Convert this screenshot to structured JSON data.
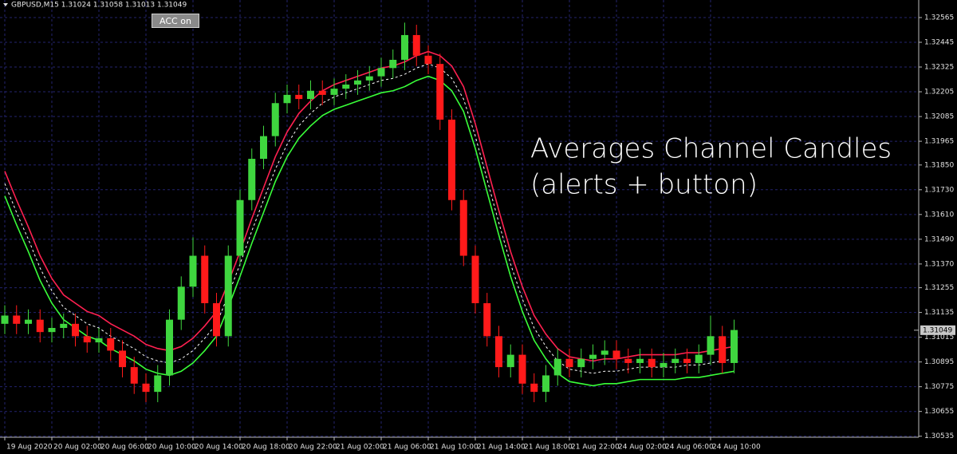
{
  "chart_data": {
    "type": "candlestick",
    "symbol_info": "GBPUSD,M15  1.31024 1.31058 1.31013 1.31049",
    "title": "Averages Channel Candles",
    "subtitle": "(alerts + button)",
    "categories": [
      "19 Aug 2020",
      null,
      null,
      null,
      "20 Aug 02:00",
      null,
      null,
      null,
      "20 Aug 06:00",
      null,
      null,
      null,
      "20 Aug 10:00",
      null,
      null,
      null,
      "20 Aug 14:00",
      null,
      null,
      null,
      "20 Aug 18:00",
      null,
      null,
      null,
      "20 Aug 22:00",
      null,
      null,
      null,
      "21 Aug 02:00",
      null,
      null,
      null,
      "21 Aug 06:00",
      null,
      null,
      null,
      "21 Aug 10:00",
      null,
      null,
      null,
      "21 Aug 14:00",
      null,
      null,
      null,
      "21 Aug 18:00",
      null,
      null,
      null,
      "21 Aug 22:00",
      null,
      null,
      null,
      "24 Aug 02:00",
      null,
      null,
      null,
      "24 Aug 06:00",
      null,
      null,
      null,
      "24 Aug 10:00",
      null,
      null
    ],
    "open": [
      1.3108,
      1.3112,
      1.3108,
      1.311,
      1.3104,
      1.3106,
      1.3108,
      1.3102,
      1.3099,
      1.3101,
      1.3095,
      1.3087,
      1.3079,
      1.3075,
      1.3083,
      1.311,
      1.3126,
      1.3141,
      1.3118,
      1.3102,
      1.3141,
      1.3168,
      1.3188,
      1.3199,
      1.3215,
      1.3219,
      1.3217,
      1.3221,
      1.3219,
      1.3222,
      1.3224,
      1.3226,
      1.3228,
      1.3232,
      1.3236,
      1.3248,
      1.3238,
      1.3234,
      1.3207,
      1.3168,
      1.3141,
      1.3118,
      1.3102,
      1.3087,
      1.3093,
      1.3079,
      1.3075,
      1.3083,
      1.3091,
      1.3087,
      1.3091,
      1.3093,
      1.3095,
      1.3091,
      1.3089,
      1.3091,
      1.3087,
      1.3089,
      1.3091,
      1.3089,
      1.3093,
      1.3102,
      1.3089
    ],
    "high": [
      1.3117,
      1.3117,
      1.3115,
      1.3115,
      1.3111,
      1.3113,
      1.3113,
      1.3107,
      1.3106,
      1.3106,
      1.31,
      1.3092,
      1.3084,
      1.3088,
      1.3115,
      1.3131,
      1.315,
      1.3146,
      1.3123,
      1.3146,
      1.3173,
      1.3193,
      1.3204,
      1.322,
      1.3224,
      1.3224,
      1.3226,
      1.3226,
      1.3227,
      1.3229,
      1.3231,
      1.3233,
      1.3237,
      1.3241,
      1.3254,
      1.3253,
      1.3243,
      1.3239,
      1.3212,
      1.3173,
      1.3146,
      1.3123,
      1.3107,
      1.3098,
      1.3098,
      1.3084,
      1.3088,
      1.3096,
      1.3096,
      1.3096,
      1.3098,
      1.31,
      1.31,
      1.3096,
      1.3096,
      1.3096,
      1.3094,
      1.3096,
      1.3096,
      1.3098,
      1.3112,
      1.3107,
      1.311
    ],
    "low": [
      1.3103,
      1.3103,
      1.3103,
      1.3099,
      1.3099,
      1.3101,
      1.3097,
      1.3094,
      1.3094,
      1.309,
      1.3082,
      1.3074,
      1.307,
      1.307,
      1.3078,
      1.3105,
      1.3121,
      1.3113,
      1.3097,
      1.3097,
      1.3136,
      1.3163,
      1.3183,
      1.3194,
      1.321,
      1.3212,
      1.3212,
      1.3214,
      1.3214,
      1.3217,
      1.3219,
      1.3221,
      1.3223,
      1.3227,
      1.3231,
      1.3233,
      1.3229,
      1.3202,
      1.3163,
      1.3136,
      1.3113,
      1.3097,
      1.3082,
      1.3082,
      1.3074,
      1.307,
      1.307,
      1.3078,
      1.3082,
      1.3082,
      1.3086,
      1.3088,
      1.3086,
      1.3084,
      1.3084,
      1.3082,
      1.3082,
      1.3084,
      1.3084,
      1.3084,
      1.3088,
      1.3084,
      1.3084
    ],
    "close": [
      1.3112,
      1.3108,
      1.311,
      1.3104,
      1.3106,
      1.3108,
      1.3102,
      1.3099,
      1.3101,
      1.3095,
      1.3087,
      1.3079,
      1.3075,
      1.3083,
      1.311,
      1.3126,
      1.3141,
      1.3118,
      1.3102,
      1.3141,
      1.3168,
      1.3188,
      1.3199,
      1.3215,
      1.3219,
      1.3217,
      1.3221,
      1.3219,
      1.3222,
      1.3224,
      1.3226,
      1.3228,
      1.3232,
      1.3236,
      1.3248,
      1.3238,
      1.3234,
      1.3207,
      1.3168,
      1.3141,
      1.3118,
      1.3102,
      1.3087,
      1.3093,
      1.3079,
      1.3075,
      1.3083,
      1.3091,
      1.3087,
      1.3091,
      1.3093,
      1.3095,
      1.3091,
      1.3089,
      1.3091,
      1.3087,
      1.3089,
      1.3091,
      1.3089,
      1.3093,
      1.3102,
      1.3089,
      1.3105
    ],
    "up_color": "#3fd63f",
    "down_color": "#ff1a1a",
    "series": [
      {
        "color": "#ff2050",
        "style": "solid",
        "values": [
          1.3182,
          1.3168,
          1.3155,
          1.3141,
          1.313,
          1.3122,
          1.3118,
          1.3114,
          1.3112,
          1.3108,
          1.3105,
          1.3102,
          1.3098,
          1.3096,
          1.3095,
          1.3097,
          1.3101,
          1.3107,
          1.3114,
          1.3128,
          1.3143,
          1.3159,
          1.3174,
          1.3189,
          1.3201,
          1.321,
          1.3216,
          1.3221,
          1.3224,
          1.3226,
          1.3228,
          1.323,
          1.3232,
          1.3233,
          1.3235,
          1.3238,
          1.324,
          1.3238,
          1.3233,
          1.3223,
          1.3205,
          1.3184,
          1.3163,
          1.3143,
          1.3126,
          1.3112,
          1.3103,
          1.3096,
          1.3092,
          1.3091,
          1.309,
          1.3091,
          1.3091,
          1.3092,
          1.3093,
          1.3093,
          1.3093,
          1.3093,
          1.3094,
          1.3094,
          1.3095,
          1.3096,
          1.3097
        ]
      },
      {
        "color": "#ffffff",
        "style": "dashed",
        "values": [
          1.3176,
          1.3162,
          1.3149,
          1.3135,
          1.3124,
          1.3116,
          1.3112,
          1.3108,
          1.3106,
          1.3102,
          1.3099,
          1.3096,
          1.3092,
          1.309,
          1.3089,
          1.3091,
          1.3095,
          1.3101,
          1.3108,
          1.3122,
          1.3137,
          1.3153,
          1.3168,
          1.3183,
          1.3195,
          1.3204,
          1.321,
          1.3215,
          1.3218,
          1.322,
          1.3222,
          1.3224,
          1.3226,
          1.3227,
          1.3229,
          1.3232,
          1.3234,
          1.3232,
          1.3227,
          1.3217,
          1.3199,
          1.3178,
          1.3157,
          1.3137,
          1.312,
          1.3106,
          1.3097,
          1.309,
          1.3086,
          1.3085,
          1.3084,
          1.3085,
          1.3085,
          1.3086,
          1.3087,
          1.3087,
          1.3087,
          1.3087,
          1.3088,
          1.3088,
          1.3089,
          1.309,
          1.3091
        ]
      },
      {
        "color": "#39ff39",
        "style": "solid",
        "values": [
          1.317,
          1.3156,
          1.3143,
          1.3129,
          1.3118,
          1.311,
          1.3106,
          1.3102,
          1.31,
          1.3096,
          1.3093,
          1.309,
          1.3086,
          1.3084,
          1.3083,
          1.3085,
          1.3089,
          1.3095,
          1.3102,
          1.3116,
          1.3131,
          1.3147,
          1.3162,
          1.3177,
          1.3189,
          1.3198,
          1.3204,
          1.3209,
          1.3212,
          1.3214,
          1.3216,
          1.3218,
          1.322,
          1.3221,
          1.3223,
          1.3226,
          1.3228,
          1.3226,
          1.3221,
          1.3211,
          1.3193,
          1.3172,
          1.3151,
          1.3131,
          1.3114,
          1.31,
          1.3091,
          1.3084,
          1.308,
          1.3079,
          1.3078,
          1.3079,
          1.3079,
          1.308,
          1.3081,
          1.3081,
          1.3081,
          1.3081,
          1.3082,
          1.3082,
          1.3083,
          1.3084,
          1.3085
        ]
      }
    ],
    "last_price": 1.31049,
    "ylim": [
      1.3053,
      1.3265
    ],
    "yticks": [
      1.32565,
      1.32445,
      1.32325,
      1.32205,
      1.32085,
      1.31965,
      {
        "value": 1.3185,
        "label": "1.31850"
      },
      {
        "value": 1.3173,
        "label": "1.31730"
      },
      {
        "value": 1.3161,
        "label": "1.31610"
      },
      {
        "value": 1.3149,
        "label": "1.31490"
      },
      {
        "value": 1.3137,
        "label": "1.31370"
      },
      1.31255,
      1.31135,
      1.31015,
      1.30895,
      1.30775,
      1.30655,
      1.30535
    ],
    "grid": true
  },
  "button_label": "ACC on"
}
